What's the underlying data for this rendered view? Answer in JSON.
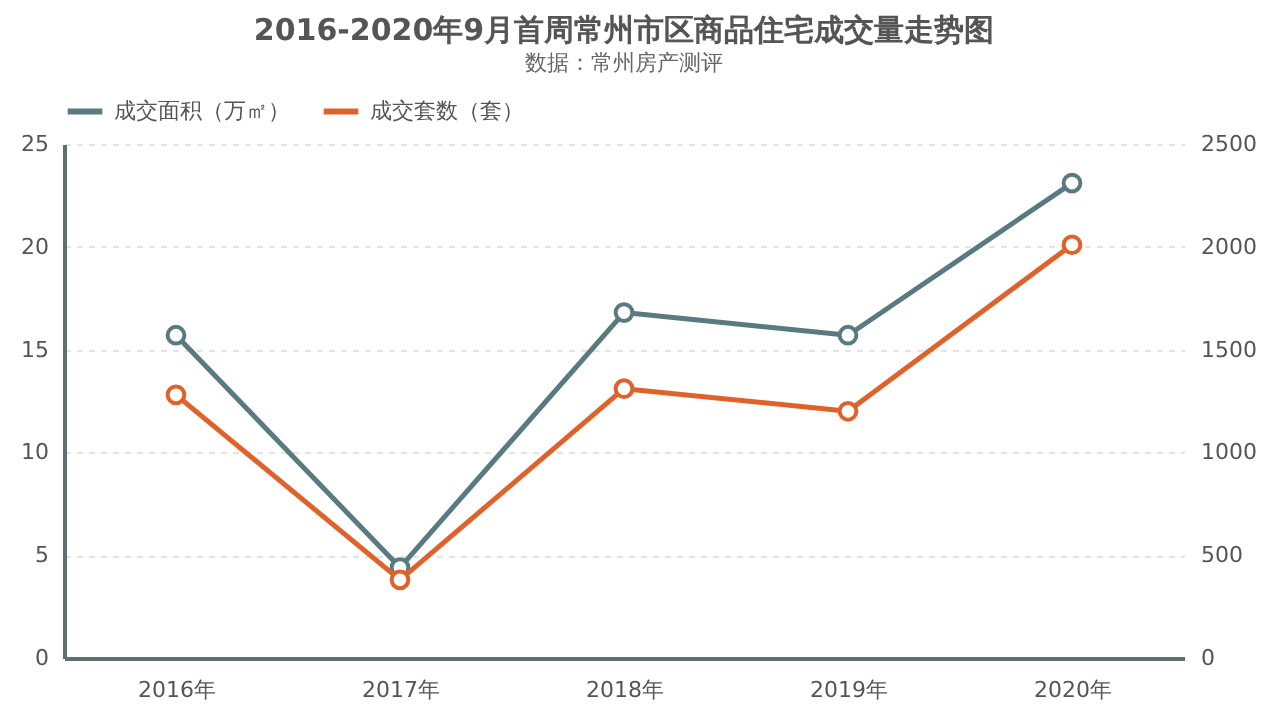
{
  "chart_data": {
    "type": "line",
    "title": "2016-2020年9月首周常州市区商品住宅成交量走势图",
    "subtitle": "数据：常州房产测评",
    "categories": [
      "2016年",
      "2017年",
      "2018年",
      "2019年",
      "2020年"
    ],
    "series": [
      {
        "name": "成交面积（万㎡）",
        "color": "#587a80",
        "values": [
          15.7,
          4.4,
          16.8,
          15.7,
          23.1
        ]
      },
      {
        "name": "成交套数（套）",
        "color": "#e0622a",
        "axis": "y2",
        "values": [
          1280,
          380,
          1310,
          1200,
          2010
        ]
      }
    ],
    "ylim": [
      0,
      25
    ],
    "yticks": [
      0,
      5,
      10,
      15,
      20,
      25
    ],
    "y2lim": [
      0,
      2500
    ],
    "y2ticks": [
      0,
      500,
      1000,
      1500,
      2000,
      2500
    ],
    "grid": "y",
    "legend": "top",
    "marker": "circle",
    "line_style": "solid"
  }
}
